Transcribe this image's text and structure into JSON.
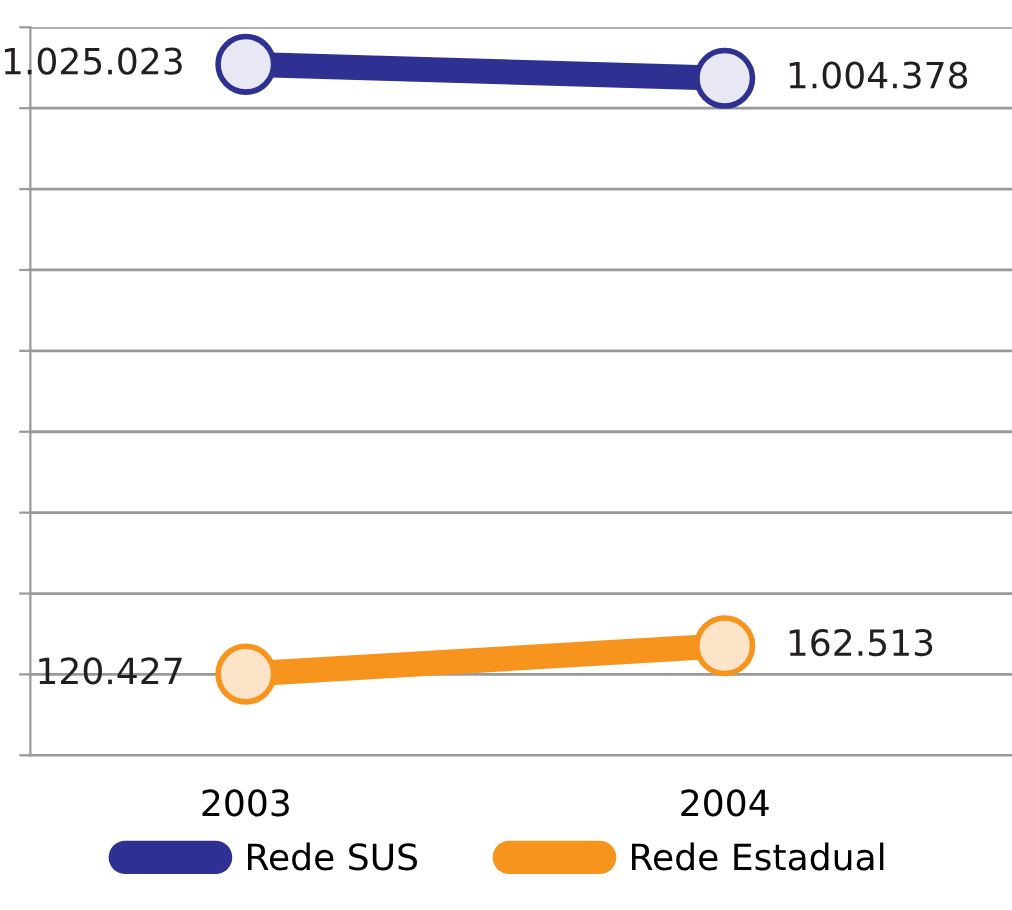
{
  "chart_data": {
    "type": "line",
    "categories": [
      "2003",
      "2004"
    ],
    "series": [
      {
        "name": "Rede SUS",
        "color": "#2e3192",
        "values": [
          1025023,
          1004378
        ],
        "value_labels": [
          "1.025.023",
          "1.004.378"
        ]
      },
      {
        "name": "Rede Estadual",
        "color": "#f7941d",
        "values": [
          120427,
          162513
        ],
        "value_labels": [
          "120.427",
          "162.513"
        ]
      }
    ],
    "ylim": [
      0,
      1080000
    ],
    "yticks": [
      {
        "value": 0,
        "label": null
      },
      {
        "value": 120000,
        "label": null
      },
      {
        "value": 240000,
        "label": null
      },
      {
        "value": 360000,
        "label": null
      },
      {
        "value": 480000,
        "label": null
      },
      {
        "value": 600000,
        "label": null
      },
      {
        "value": 720000,
        "label": null
      },
      {
        "value": 840000,
        "label": null
      },
      {
        "value": 960000,
        "label": null
      },
      {
        "value": 1080000,
        "label": null
      }
    ],
    "grid": "y",
    "legend": "bottom",
    "marker": "circle",
    "line_style": "solid"
  }
}
